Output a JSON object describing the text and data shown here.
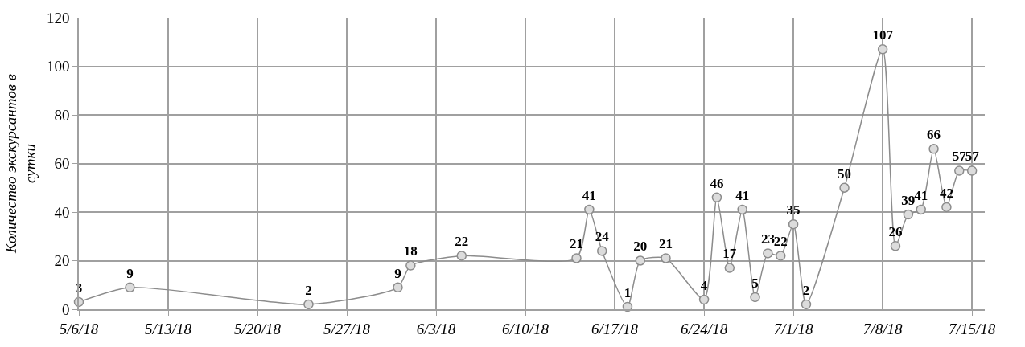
{
  "chart_data": {
    "type": "line",
    "ylabel": "Количество экскурсантов в\nсутки",
    "x": [
      "--05-06",
      "--05-10",
      "--05-24",
      "--05-31",
      "--06-01",
      "--06-05",
      "--06-14",
      "--06-15",
      "--06-16",
      "--06-18",
      "--06-19",
      "--06-21",
      "--06-24",
      "--06-25",
      "--06-26",
      "--06-27",
      "--06-28",
      "--06-29",
      "--06-30",
      "--07-01",
      "--07-02",
      "--07-05",
      "--07-08",
      "--07-09",
      "--07-10",
      "--07-11",
      "--07-12",
      "--07-13",
      "--07-14",
      "--07-15"
    ],
    "series": [
      {
        "color": "#8c8c8c",
        "values": [
          3,
          9,
          2,
          9,
          18,
          22,
          21,
          41,
          24,
          1,
          20,
          21,
          4,
          46,
          17,
          41,
          5,
          23,
          22,
          35,
          2,
          50,
          107,
          26,
          39,
          41,
          66,
          42,
          57,
          57
        ]
      }
    ],
    "xlim": [
      "--05-06",
      "--07-16"
    ],
    "xticks": [
      {
        "value": "--05-06",
        "label": "5/6/18"
      },
      {
        "value": "--05-13",
        "label": "5/13/18"
      },
      {
        "value": "--05-20",
        "label": "5/20/18"
      },
      {
        "value": "--05-27",
        "label": "5/27/18"
      },
      {
        "value": "--06-03",
        "label": "6/3/18"
      },
      {
        "value": "--06-10",
        "label": "6/10/18"
      },
      {
        "value": "--06-17",
        "label": "6/17/18"
      },
      {
        "value": "--06-24",
        "label": "6/24/18"
      },
      {
        "value": "--07-01",
        "label": "7/1/18"
      },
      {
        "value": "--07-08",
        "label": "7/8/18"
      },
      {
        "value": "--07-15",
        "label": "7/15/18"
      }
    ],
    "ylim": [
      0,
      120
    ],
    "yticks": [
      0,
      20,
      40,
      60,
      80,
      100,
      120
    ],
    "grid": true,
    "marker": "circle",
    "line_style": "solid",
    "data_labels": true
  }
}
